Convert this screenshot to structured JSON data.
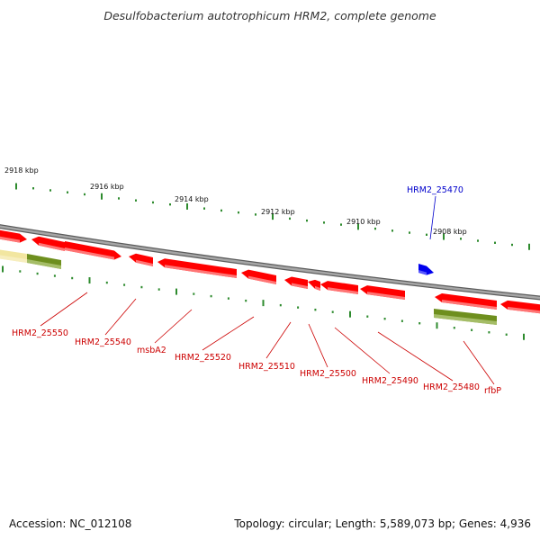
{
  "title": "Desulfobacterium autotrophicum HRM2, complete genome",
  "accession": "Accession: NC_012108",
  "summary": "Topology: circular; Length: 5,589,073 bp; Genes: 4,936",
  "colors": {
    "backbone": "#8a8a8a",
    "gene": "#ff0000",
    "gene_shade": "#ff8a8a",
    "rna": "#6e8f1e",
    "rna_shade": "#b8cc80",
    "pale": "#f2e6a0",
    "highlight": "#0000ee",
    "tick": "#2e8b2e",
    "label_red": "#cc0000",
    "label_blue": "#0000cc"
  },
  "scale_labels": [
    "2918 kbp",
    "2916 kbp",
    "2914 kbp",
    "2912 kbp",
    "2910 kbp",
    "2908 kbp"
  ],
  "gene_labels": [
    {
      "text": "HRM2_25550",
      "color": "red"
    },
    {
      "text": "HRM2_25540",
      "color": "red"
    },
    {
      "text": "msbA2",
      "color": "red"
    },
    {
      "text": "HRM2_25520",
      "color": "red"
    },
    {
      "text": "HRM2_25510",
      "color": "red"
    },
    {
      "text": "HRM2_25500",
      "color": "red"
    },
    {
      "text": "HRM2_25490",
      "color": "red"
    },
    {
      "text": "HRM2_25480",
      "color": "red"
    },
    {
      "text": "rfbP",
      "color": "red"
    },
    {
      "text": "HRM2_25470",
      "color": "blue"
    }
  ]
}
